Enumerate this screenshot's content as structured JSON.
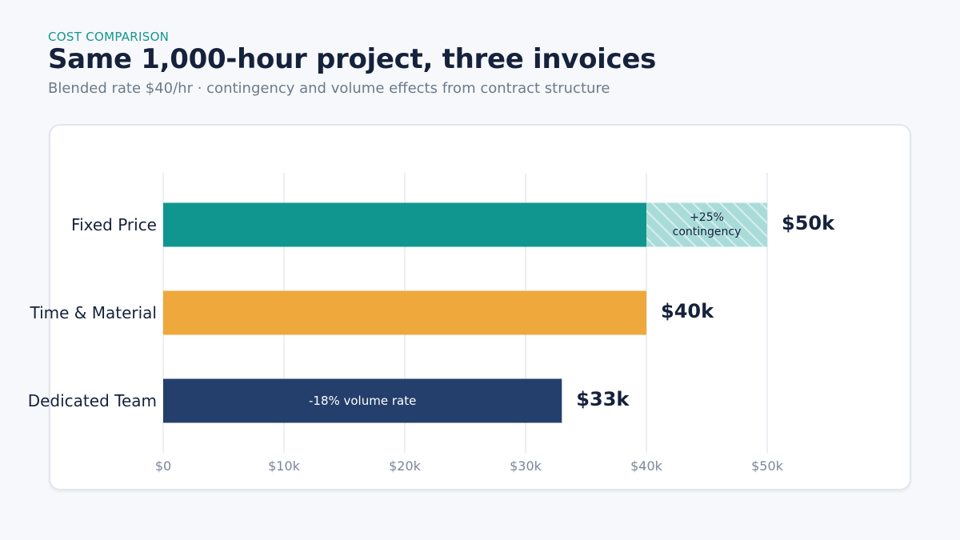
{
  "header": {
    "eyebrow": "COST COMPARISON",
    "title": "Same 1,000-hour project, three invoices",
    "subtitle": "Blended rate $40/hr · contingency and volume effects from contract structure"
  },
  "chart_data": {
    "type": "bar",
    "orientation": "horizontal",
    "stacked": true,
    "categories": [
      "Fixed Price",
      "Time & Material",
      "Dedicated Team"
    ],
    "series": [
      {
        "values": [
          40000,
          40000,
          33000
        ]
      },
      {
        "values": [
          10000,
          0,
          0
        ]
      }
    ],
    "segment_annotations": [
      {
        "category": "Fixed Price",
        "text": [
          "+25%",
          "contingency"
        ]
      },
      {
        "category": "Dedicated Team",
        "text": [
          "-18% volume rate"
        ]
      }
    ],
    "value_labels": [
      "$50k",
      "$40k",
      "$33k"
    ],
    "xlim": [
      0,
      50000
    ],
    "x_ticks": [
      0,
      10000,
      20000,
      30000,
      40000,
      50000
    ],
    "x_tick_labels": [
      "$0",
      "$10k",
      "$20k",
      "$30k",
      "$40k",
      "$50k"
    ],
    "grid": "vertical",
    "colors": {
      "fixed_price": "#10968f",
      "contingency": "#a9dcd9",
      "time_material": "#efa83c",
      "dedicated_team": "#243f6b",
      "grid": "#e6e9ef"
    }
  }
}
